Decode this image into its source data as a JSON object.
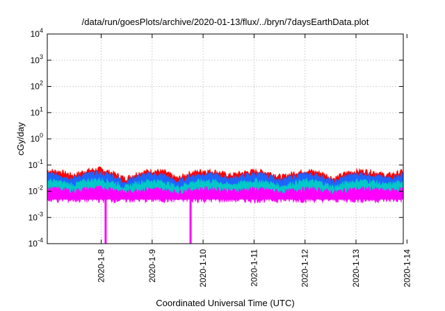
{
  "chart_data": {
    "type": "area",
    "title": "/data/run/goesPlots/archive/2020-01-13/flux/../bryn/7daysEarthData.plot",
    "xlabel": "Coordinated Universal Time (UTC)",
    "ylabel": "cGy/day",
    "y_scale": "log",
    "ylim": [
      0.0001,
      10000
    ],
    "y_ticks": [
      {
        "value": 0.0001,
        "base": "10",
        "exp": "-4"
      },
      {
        "value": 0.001,
        "base": "10",
        "exp": "-3"
      },
      {
        "value": 0.01,
        "base": "10",
        "exp": "-2"
      },
      {
        "value": 0.1,
        "base": "10",
        "exp": "-1"
      },
      {
        "value": 1,
        "base": "10",
        "exp": "0"
      },
      {
        "value": 10,
        "base": "10",
        "exp": "1"
      },
      {
        "value": 100,
        "base": "10",
        "exp": "2"
      },
      {
        "value": 1000,
        "base": "10",
        "exp": "3"
      },
      {
        "value": 10000,
        "base": "10",
        "exp": "4"
      }
    ],
    "xlim": [
      "2020-01-07 04:00",
      "2020-01-14 00:00"
    ],
    "x_ticks": [
      "2020-1-8",
      "2020-1-9",
      "2020-1-10",
      "2020-1-11",
      "2020-1-12",
      "2020-1-13",
      "2020-1-14"
    ],
    "grid": true,
    "x_days": [
      0.0,
      0.25,
      0.5,
      0.75,
      1.0,
      1.25,
      1.5,
      1.75,
      2.0,
      2.25,
      2.5,
      2.75,
      3.0,
      3.25,
      3.5,
      3.75,
      4.0,
      4.25,
      4.5,
      4.75,
      5.0,
      5.25,
      5.5,
      5.75,
      6.0,
      6.25,
      6.5,
      6.75,
      6.833
    ],
    "series": [
      {
        "color": "#ff0000",
        "values": [
          0.06,
          0.055,
          0.04,
          0.06,
          0.07,
          0.05,
          0.03,
          0.05,
          0.06,
          0.055,
          0.03,
          0.05,
          0.06,
          0.055,
          0.04,
          0.05,
          0.06,
          0.05,
          0.035,
          0.05,
          0.06,
          0.05,
          0.03,
          0.05,
          0.06,
          0.055,
          0.04,
          0.05,
          0.06
        ]
      },
      {
        "color": "#1e64ff",
        "values": [
          0.045,
          0.04,
          0.03,
          0.045,
          0.05,
          0.04,
          0.022,
          0.038,
          0.045,
          0.04,
          0.022,
          0.038,
          0.045,
          0.042,
          0.03,
          0.038,
          0.045,
          0.038,
          0.025,
          0.038,
          0.045,
          0.038,
          0.022,
          0.038,
          0.045,
          0.042,
          0.03,
          0.038,
          0.045
        ]
      },
      {
        "color": "#00c8c8",
        "values": [
          0.025,
          0.022,
          0.017,
          0.025,
          0.028,
          0.022,
          0.014,
          0.021,
          0.025,
          0.022,
          0.014,
          0.021,
          0.025,
          0.023,
          0.017,
          0.021,
          0.025,
          0.021,
          0.015,
          0.021,
          0.025,
          0.021,
          0.014,
          0.021,
          0.025,
          0.023,
          0.017,
          0.021,
          0.025
        ]
      },
      {
        "color": "#ff00ff",
        "values": [
          0.012,
          0.012,
          0.01,
          0.012,
          0.013,
          0.012,
          0.009,
          0.011,
          0.012,
          0.011,
          0.009,
          0.011,
          0.012,
          0.012,
          0.01,
          0.011,
          0.012,
          0.011,
          0.009,
          0.011,
          0.012,
          0.011,
          0.009,
          0.011,
          0.012,
          0.012,
          0.01,
          0.011,
          0.012
        ]
      }
    ],
    "series_floor": 0.005,
    "dropouts": [
      {
        "x_day": 1.12,
        "value": 0.0001
      },
      {
        "x_day": 2.75,
        "value": 0.0001
      }
    ]
  }
}
